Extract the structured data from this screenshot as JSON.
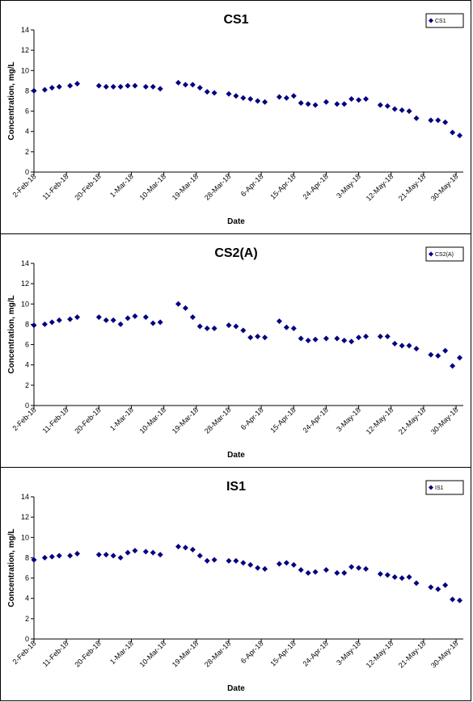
{
  "chart_data": [
    {
      "type": "scatter",
      "title": "CS1",
      "xlabel": "Date",
      "ylabel": "Concentration, mg/L",
      "ylim": [
        0,
        14
      ],
      "yticks": [
        0,
        2,
        4,
        6,
        8,
        10,
        12,
        14
      ],
      "xlim": [
        "2018-02-02",
        "2018-06-01"
      ],
      "xticks": [
        "2-Feb-18",
        "11-Feb-18",
        "20-Feb-18",
        "1-Mar-18",
        "10-Mar-18",
        "19-Mar-18",
        "28-Mar-18",
        "6-Apr-18",
        "15-Apr-18",
        "24-Apr-18",
        "3-May-18",
        "12-May-18",
        "21-May-18",
        "30-May-18"
      ],
      "legend_position": "top-right",
      "marker_color": "#000080",
      "series": [
        {
          "name": "CS1",
          "points": [
            [
              "2018-02-02",
              8.0
            ],
            [
              "2018-02-05",
              8.1
            ],
            [
              "2018-02-07",
              8.3
            ],
            [
              "2018-02-09",
              8.4
            ],
            [
              "2018-02-12",
              8.5
            ],
            [
              "2018-02-14",
              8.7
            ],
            [
              "2018-02-20",
              8.5
            ],
            [
              "2018-02-22",
              8.4
            ],
            [
              "2018-02-24",
              8.4
            ],
            [
              "2018-02-26",
              8.4
            ],
            [
              "2018-02-28",
              8.5
            ],
            [
              "2018-03-02",
              8.5
            ],
            [
              "2018-03-05",
              8.4
            ],
            [
              "2018-03-07",
              8.4
            ],
            [
              "2018-03-09",
              8.2
            ],
            [
              "2018-03-14",
              8.8
            ],
            [
              "2018-03-16",
              8.6
            ],
            [
              "2018-03-18",
              8.6
            ],
            [
              "2018-03-20",
              8.3
            ],
            [
              "2018-03-22",
              7.9
            ],
            [
              "2018-03-24",
              7.8
            ],
            [
              "2018-03-28",
              7.7
            ],
            [
              "2018-03-30",
              7.5
            ],
            [
              "2018-04-01",
              7.3
            ],
            [
              "2018-04-03",
              7.2
            ],
            [
              "2018-04-05",
              7.0
            ],
            [
              "2018-04-07",
              6.9
            ],
            [
              "2018-04-11",
              7.4
            ],
            [
              "2018-04-13",
              7.3
            ],
            [
              "2018-04-15",
              7.5
            ],
            [
              "2018-04-17",
              6.8
            ],
            [
              "2018-04-19",
              6.7
            ],
            [
              "2018-04-21",
              6.6
            ],
            [
              "2018-04-24",
              6.9
            ],
            [
              "2018-04-27",
              6.7
            ],
            [
              "2018-04-29",
              6.7
            ],
            [
              "2018-05-01",
              7.2
            ],
            [
              "2018-05-03",
              7.1
            ],
            [
              "2018-05-05",
              7.2
            ],
            [
              "2018-05-09",
              6.6
            ],
            [
              "2018-05-11",
              6.5
            ],
            [
              "2018-05-13",
              6.2
            ],
            [
              "2018-05-15",
              6.1
            ],
            [
              "2018-05-17",
              6.0
            ],
            [
              "2018-05-19",
              5.3
            ],
            [
              "2018-05-23",
              5.1
            ],
            [
              "2018-05-25",
              5.1
            ],
            [
              "2018-05-27",
              4.9
            ],
            [
              "2018-05-29",
              3.9
            ],
            [
              "2018-05-31",
              3.6
            ]
          ]
        }
      ]
    },
    {
      "type": "scatter",
      "title": "CS2(A)",
      "xlabel": "Date",
      "ylabel": "Concentration, mg/L",
      "ylim": [
        0,
        14
      ],
      "yticks": [
        0,
        2,
        4,
        6,
        8,
        10,
        12,
        14
      ],
      "xlim": [
        "2018-02-02",
        "2018-06-01"
      ],
      "xticks": [
        "2-Feb-18",
        "11-Feb-18",
        "20-Feb-18",
        "1-Mar-18",
        "10-Mar-18",
        "19-Mar-18",
        "28-Mar-18",
        "6-Apr-18",
        "15-Apr-18",
        "24-Apr-18",
        "3-May-18",
        "12-May-18",
        "21-May-18",
        "30-May-18"
      ],
      "legend_position": "top-right",
      "marker_color": "#000080",
      "series": [
        {
          "name": "CS2(A)",
          "points": [
            [
              "2018-02-02",
              7.9
            ],
            [
              "2018-02-05",
              8.0
            ],
            [
              "2018-02-07",
              8.2
            ],
            [
              "2018-02-09",
              8.4
            ],
            [
              "2018-02-12",
              8.5
            ],
            [
              "2018-02-14",
              8.7
            ],
            [
              "2018-02-20",
              8.7
            ],
            [
              "2018-02-22",
              8.4
            ],
            [
              "2018-02-24",
              8.4
            ],
            [
              "2018-02-26",
              8.0
            ],
            [
              "2018-02-28",
              8.6
            ],
            [
              "2018-03-02",
              8.8
            ],
            [
              "2018-03-05",
              8.7
            ],
            [
              "2018-03-07",
              8.1
            ],
            [
              "2018-03-09",
              8.2
            ],
            [
              "2018-03-14",
              10.0
            ],
            [
              "2018-03-16",
              9.6
            ],
            [
              "2018-03-18",
              8.7
            ],
            [
              "2018-03-20",
              7.8
            ],
            [
              "2018-03-22",
              7.6
            ],
            [
              "2018-03-24",
              7.6
            ],
            [
              "2018-03-28",
              7.9
            ],
            [
              "2018-03-30",
              7.8
            ],
            [
              "2018-04-01",
              7.4
            ],
            [
              "2018-04-03",
              6.7
            ],
            [
              "2018-04-05",
              6.8
            ],
            [
              "2018-04-07",
              6.7
            ],
            [
              "2018-04-11",
              8.3
            ],
            [
              "2018-04-13",
              7.7
            ],
            [
              "2018-04-15",
              7.6
            ],
            [
              "2018-04-17",
              6.6
            ],
            [
              "2018-04-19",
              6.4
            ],
            [
              "2018-04-21",
              6.5
            ],
            [
              "2018-04-24",
              6.6
            ],
            [
              "2018-04-27",
              6.6
            ],
            [
              "2018-04-29",
              6.4
            ],
            [
              "2018-05-01",
              6.3
            ],
            [
              "2018-05-03",
              6.7
            ],
            [
              "2018-05-05",
              6.8
            ],
            [
              "2018-05-09",
              6.8
            ],
            [
              "2018-05-11",
              6.8
            ],
            [
              "2018-05-13",
              6.1
            ],
            [
              "2018-05-15",
              5.9
            ],
            [
              "2018-05-17",
              5.9
            ],
            [
              "2018-05-19",
              5.6
            ],
            [
              "2018-05-23",
              5.0
            ],
            [
              "2018-05-25",
              4.9
            ],
            [
              "2018-05-27",
              5.4
            ],
            [
              "2018-05-29",
              3.9
            ],
            [
              "2018-05-31",
              4.7
            ]
          ]
        }
      ]
    },
    {
      "type": "scatter",
      "title": "IS1",
      "xlabel": "Date",
      "ylabel": "Concentration, mg/L",
      "ylim": [
        0,
        14
      ],
      "yticks": [
        0,
        2,
        4,
        6,
        8,
        10,
        12,
        14
      ],
      "xlim": [
        "2018-02-02",
        "2018-06-01"
      ],
      "xticks": [
        "2-Feb-18",
        "11-Feb-18",
        "20-Feb-18",
        "1-Mar-18",
        "10-Mar-18",
        "19-Mar-18",
        "28-Mar-18",
        "6-Apr-18",
        "15-Apr-18",
        "24-Apr-18",
        "3-May-18",
        "12-May-18",
        "21-May-18",
        "30-May-18"
      ],
      "legend_position": "top-right",
      "marker_color": "#000080",
      "series": [
        {
          "name": "IS1",
          "points": [
            [
              "2018-02-02",
              7.8
            ],
            [
              "2018-02-05",
              8.0
            ],
            [
              "2018-02-07",
              8.1
            ],
            [
              "2018-02-09",
              8.2
            ],
            [
              "2018-02-12",
              8.2
            ],
            [
              "2018-02-14",
              8.4
            ],
            [
              "2018-02-20",
              8.3
            ],
            [
              "2018-02-22",
              8.3
            ],
            [
              "2018-02-24",
              8.2
            ],
            [
              "2018-02-26",
              8.0
            ],
            [
              "2018-02-28",
              8.5
            ],
            [
              "2018-03-02",
              8.7
            ],
            [
              "2018-03-05",
              8.6
            ],
            [
              "2018-03-07",
              8.5
            ],
            [
              "2018-03-09",
              8.3
            ],
            [
              "2018-03-14",
              9.1
            ],
            [
              "2018-03-16",
              9.0
            ],
            [
              "2018-03-18",
              8.8
            ],
            [
              "2018-03-20",
              8.2
            ],
            [
              "2018-03-22",
              7.7
            ],
            [
              "2018-03-24",
              7.8
            ],
            [
              "2018-03-28",
              7.7
            ],
            [
              "2018-03-30",
              7.7
            ],
            [
              "2018-04-01",
              7.5
            ],
            [
              "2018-04-03",
              7.3
            ],
            [
              "2018-04-05",
              7.0
            ],
            [
              "2018-04-07",
              6.9
            ],
            [
              "2018-04-11",
              7.4
            ],
            [
              "2018-04-13",
              7.5
            ],
            [
              "2018-04-15",
              7.3
            ],
            [
              "2018-04-17",
              6.8
            ],
            [
              "2018-04-19",
              6.5
            ],
            [
              "2018-04-21",
              6.6
            ],
            [
              "2018-04-24",
              6.8
            ],
            [
              "2018-04-27",
              6.5
            ],
            [
              "2018-04-29",
              6.5
            ],
            [
              "2018-05-01",
              7.1
            ],
            [
              "2018-05-03",
              7.0
            ],
            [
              "2018-05-05",
              6.9
            ],
            [
              "2018-05-09",
              6.4
            ],
            [
              "2018-05-11",
              6.3
            ],
            [
              "2018-05-13",
              6.1
            ],
            [
              "2018-05-15",
              6.0
            ],
            [
              "2018-05-17",
              6.1
            ],
            [
              "2018-05-19",
              5.5
            ],
            [
              "2018-05-23",
              5.1
            ],
            [
              "2018-05-25",
              4.9
            ],
            [
              "2018-05-27",
              5.3
            ],
            [
              "2018-05-29",
              3.9
            ],
            [
              "2018-05-31",
              3.8
            ]
          ]
        }
      ]
    }
  ]
}
